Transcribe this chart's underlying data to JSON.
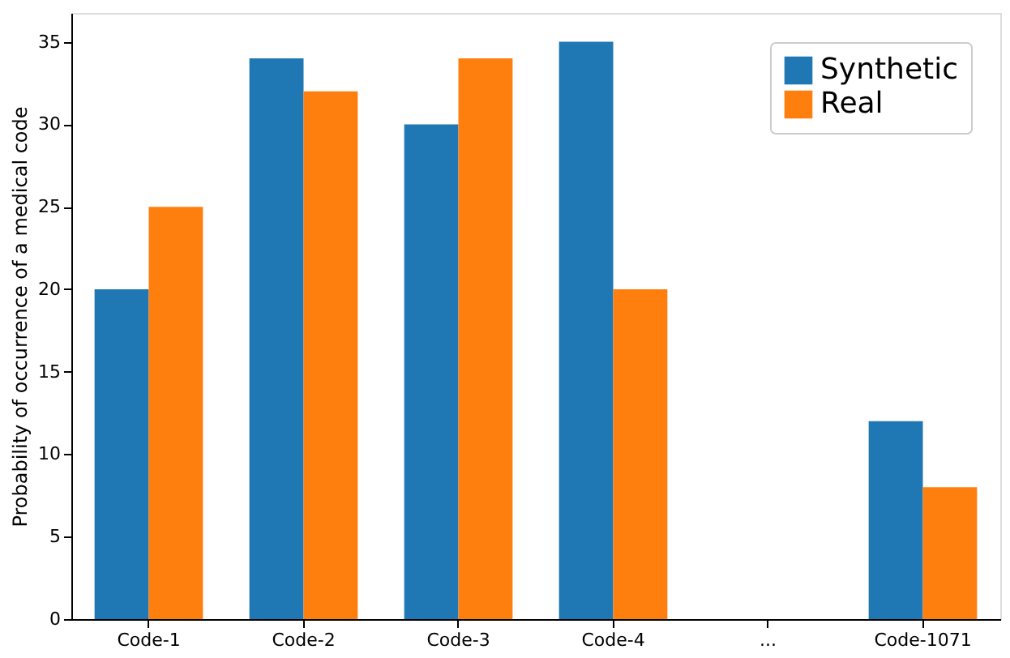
{
  "chart_data": {
    "type": "bar",
    "ylabel": "Probability of occurrence of a medical code",
    "categories": [
      "Code-1",
      "Code-2",
      "Code-3",
      "Code-4",
      "...",
      "Code-1071"
    ],
    "series": [
      {
        "name": "Synthetic",
        "color": "#1f77b4",
        "values": [
          20,
          34,
          30,
          35,
          null,
          12
        ]
      },
      {
        "name": "Real",
        "color": "#ff7f0e",
        "values": [
          25,
          32,
          34,
          20,
          null,
          8
        ]
      }
    ],
    "ylim": [
      0,
      36.75
    ],
    "yticks": [
      0,
      5,
      10,
      15,
      20,
      25,
      30,
      35
    ],
    "grid": false,
    "legend": "top right"
  }
}
